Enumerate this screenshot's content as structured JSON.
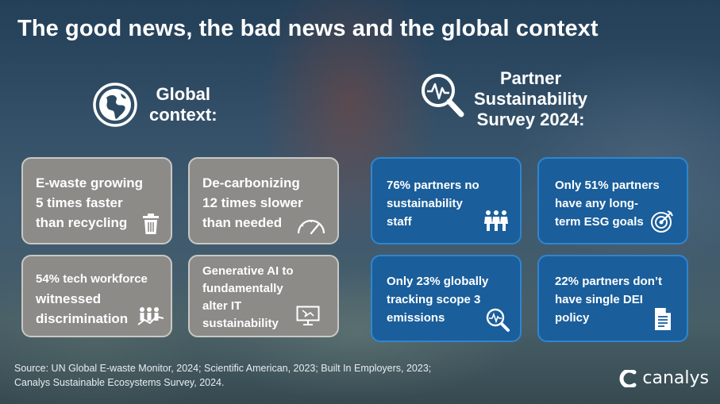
{
  "slide": {
    "title": "The good news, the bad news and the global context"
  },
  "global": {
    "heading_line1": "Global",
    "heading_line2": "context:",
    "icon": "globe-icon",
    "boxes": [
      {
        "lines": [
          "E-waste growing",
          "5 times faster",
          "than recycling"
        ],
        "icon": "trash-icon"
      },
      {
        "lines": [
          "De-carbonizing",
          "12 times slower",
          "than needed"
        ],
        "icon": "speedometer-icon"
      },
      {
        "lines": [
          "54% tech workforce",
          "witnessed",
          "discrimination"
        ],
        "icon": "people-graph-icon"
      },
      {
        "lines": [
          "Generative AI to",
          "fundamentally",
          "alter IT",
          "sustainability"
        ],
        "icon": "monitor-icon"
      }
    ]
  },
  "partner": {
    "heading_line1": "Partner",
    "heading_line2": "Sustainability",
    "heading_line3": "Survey 2024:",
    "icon": "magnifier-pulse-icon",
    "boxes": [
      {
        "lines": [
          "76% partners no",
          "sustainability",
          "staff"
        ],
        "icon": "people-icon"
      },
      {
        "lines": [
          "Only 51% partners",
          "have any long-",
          "term ESG goals"
        ],
        "icon": "target-icon"
      },
      {
        "lines": [
          "Only 23% globally",
          "tracking scope 3",
          "emissions"
        ],
        "icon": "magnifier-pulse-icon"
      },
      {
        "lines": [
          "22% partners don’t",
          "have single DEI",
          "policy"
        ],
        "icon": "document-icon"
      }
    ]
  },
  "source": {
    "line1": "Source: UN Global E-waste Monitor, 2024; Scientific American, 2023; Built In Employers, 2023;",
    "line2": "Canalys Sustainable Ecosystems Survey, 2024."
  },
  "brand": {
    "name": "canalys"
  },
  "colors": {
    "grey_box": "#8c8b88",
    "blue_box": "#1a5e9b",
    "blue_border": "#2f86cf"
  }
}
